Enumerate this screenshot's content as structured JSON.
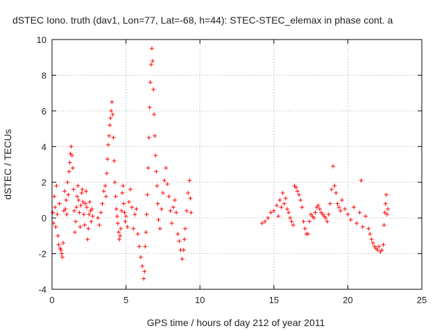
{
  "chart_data": {
    "type": "scatter",
    "title": "dSTEC Iono. truth (dav1, Lon=77, Lat=-68, h=44): STEC-STEC_elemax in phase cont. a",
    "xlabel": "GPS time / hours of day 212 of year 2011",
    "ylabel": "dSTEC  / TECUs",
    "xlim": [
      0,
      25
    ],
    "ylim": [
      -4,
      10
    ],
    "xticks": [
      "0",
      "5",
      "10",
      "15",
      "20",
      "25"
    ],
    "yticks": [
      "-4",
      "-2",
      "0",
      "2",
      "4",
      "6",
      "8",
      "10"
    ],
    "grid": true,
    "marker": "+",
    "color": "#ff0000",
    "series": [
      {
        "points": [
          [
            0.05,
            0.3
          ],
          [
            0.1,
            -0.3
          ],
          [
            0.15,
            1.2
          ],
          [
            0.2,
            0.6
          ],
          [
            0.25,
            -0.5
          ],
          [
            0.3,
            1.8
          ],
          [
            0.35,
            0.2
          ],
          [
            0.4,
            -1.0
          ],
          [
            0.45,
            -1.5
          ],
          [
            0.5,
            0.8
          ],
          [
            0.55,
            -1.7
          ],
          [
            0.6,
            -1.8
          ],
          [
            0.65,
            -2.0
          ],
          [
            0.7,
            -2.2
          ],
          [
            0.75,
            -1.4
          ],
          [
            0.8,
            0.4
          ],
          [
            0.85,
            1.5
          ],
          [
            0.9,
            0.5
          ],
          [
            0.95,
            1.0
          ],
          [
            1.0,
            0.2
          ],
          [
            1.05,
            2.0
          ],
          [
            1.1,
            1.3
          ],
          [
            1.15,
            2.6
          ],
          [
            1.2,
            3.1
          ],
          [
            1.25,
            3.6
          ],
          [
            1.3,
            4.0
          ],
          [
            1.35,
            3.5
          ],
          [
            1.4,
            2.8
          ],
          [
            1.45,
            1.6
          ],
          [
            1.5,
            0.4
          ],
          [
            1.55,
            -0.8
          ],
          [
            1.6,
            -0.2
          ],
          [
            1.65,
            0.6
          ],
          [
            1.7,
            1.2
          ],
          [
            1.75,
            1.8
          ],
          [
            1.8,
            1.0
          ],
          [
            1.85,
            0.3
          ],
          [
            1.9,
            -0.5
          ],
          [
            1.95,
            0.7
          ],
          [
            2.0,
            1.4
          ],
          [
            2.05,
            1.6
          ],
          [
            2.1,
            0.9
          ],
          [
            2.15,
            0.2
          ],
          [
            2.2,
            -0.4
          ],
          [
            2.25,
            0.8
          ],
          [
            2.3,
            1.5
          ],
          [
            2.35,
            0.6
          ],
          [
            2.4,
            -1.2
          ],
          [
            2.45,
            -0.6
          ],
          [
            2.5,
            0.2
          ],
          [
            2.55,
            0.9
          ],
          [
            2.6,
            0.4
          ],
          [
            2.65,
            -0.2
          ],
          [
            2.7,
            0.5
          ],
          [
            2.75,
            0.1
          ],
          [
            3.1,
            0.0
          ],
          [
            3.2,
            -0.4
          ],
          [
            3.3,
            0.3
          ],
          [
            3.4,
            0.8
          ],
          [
            3.5,
            1.5
          ],
          [
            3.6,
            1.8
          ],
          [
            3.65,
            1.2
          ],
          [
            3.7,
            2.5
          ],
          [
            3.75,
            3.3
          ],
          [
            3.8,
            4.1
          ],
          [
            3.85,
            4.6
          ],
          [
            3.9,
            5.2
          ],
          [
            3.95,
            5.6
          ],
          [
            4.0,
            6.0
          ],
          [
            4.05,
            6.5
          ],
          [
            4.1,
            5.8
          ],
          [
            4.15,
            4.5
          ],
          [
            4.2,
            3.2
          ],
          [
            4.25,
            2.0
          ],
          [
            4.3,
            1.2
          ],
          [
            4.35,
            0.5
          ],
          [
            4.4,
            0.1
          ],
          [
            4.45,
            -0.3
          ],
          [
            4.5,
            -0.8
          ],
          [
            4.55,
            -1.2
          ],
          [
            4.6,
            -1.0
          ],
          [
            4.65,
            -0.6
          ],
          [
            4.7,
            0.4
          ],
          [
            4.75,
            1.4
          ],
          [
            4.8,
            1.8
          ],
          [
            4.85,
            0.8
          ],
          [
            4.9,
            0.3
          ],
          [
            4.95,
            -0.2
          ],
          [
            5.0,
            0.1
          ],
          [
            5.1,
            -0.5
          ],
          [
            5.2,
            0.9
          ],
          [
            5.3,
            1.6
          ],
          [
            5.4,
            0.6
          ],
          [
            5.5,
            -0.6
          ],
          [
            5.6,
            0.2
          ],
          [
            5.7,
            0.5
          ],
          [
            5.8,
            -0.9
          ],
          [
            5.9,
            -1.6
          ],
          [
            6.0,
            -2.2
          ],
          [
            6.1,
            -2.7
          ],
          [
            6.2,
            -3.4
          ],
          [
            6.25,
            -3.0
          ],
          [
            6.3,
            -1.6
          ],
          [
            6.35,
            -0.8
          ],
          [
            6.4,
            0.2
          ],
          [
            6.45,
            1.3
          ],
          [
            6.5,
            2.8
          ],
          [
            6.55,
            4.5
          ],
          [
            6.6,
            6.2
          ],
          [
            6.65,
            7.6
          ],
          [
            6.7,
            8.6
          ],
          [
            6.75,
            9.5
          ],
          [
            6.8,
            8.8
          ],
          [
            6.85,
            7.2
          ],
          [
            6.9,
            5.8
          ],
          [
            6.95,
            4.6
          ],
          [
            7.0,
            3.5
          ],
          [
            7.05,
            2.6
          ],
          [
            7.1,
            1.8
          ],
          [
            7.15,
            0.8
          ],
          [
            7.2,
            -0.1
          ],
          [
            7.3,
            -0.6
          ],
          [
            7.4,
            0.5
          ],
          [
            7.5,
            1.4
          ],
          [
            7.6,
            2.1
          ],
          [
            7.7,
            2.8
          ],
          [
            7.8,
            1.9
          ],
          [
            7.9,
            1.2
          ],
          [
            8.0,
            0.4
          ],
          [
            8.1,
            -0.3
          ],
          [
            8.2,
            0.6
          ],
          [
            8.3,
            1.0
          ],
          [
            8.4,
            0.3
          ],
          [
            8.5,
            -0.9
          ],
          [
            8.6,
            -1.3
          ],
          [
            8.7,
            -1.8
          ],
          [
            8.8,
            -2.3
          ],
          [
            8.9,
            -1.8
          ],
          [
            8.95,
            -1.2
          ],
          [
            9.0,
            -0.6
          ],
          [
            9.1,
            0.4
          ],
          [
            9.2,
            1.4
          ],
          [
            9.3,
            2.1
          ],
          [
            9.35,
            1.1
          ],
          [
            9.4,
            0.3
          ],
          [
            14.2,
            -0.3
          ],
          [
            14.4,
            -0.2
          ],
          [
            14.6,
            0.0
          ],
          [
            14.8,
            0.3
          ],
          [
            15.0,
            0.4
          ],
          [
            15.2,
            0.7
          ],
          [
            15.3,
            0.1
          ],
          [
            15.4,
            1.0
          ],
          [
            15.5,
            0.6
          ],
          [
            15.6,
            1.4
          ],
          [
            15.7,
            0.8
          ],
          [
            15.8,
            1.1
          ],
          [
            15.9,
            0.5
          ],
          [
            16.0,
            0.3
          ],
          [
            16.1,
            0.0
          ],
          [
            16.2,
            -0.2
          ],
          [
            16.3,
            -0.4
          ],
          [
            16.4,
            1.8
          ],
          [
            16.5,
            1.7
          ],
          [
            16.6,
            1.5
          ],
          [
            16.7,
            1.3
          ],
          [
            16.8,
            1.0
          ],
          [
            16.9,
            0.6
          ],
          [
            17.0,
            -0.2
          ],
          [
            17.1,
            -0.6
          ],
          [
            17.2,
            -0.9
          ],
          [
            17.3,
            -0.9
          ],
          [
            17.4,
            -0.2
          ],
          [
            17.5,
            0.2
          ],
          [
            17.6,
            0.1
          ],
          [
            17.7,
            0.0
          ],
          [
            17.8,
            0.3
          ],
          [
            17.9,
            0.6
          ],
          [
            18.0,
            0.7
          ],
          [
            18.1,
            0.5
          ],
          [
            18.2,
            0.3
          ],
          [
            18.3,
            0.2
          ],
          [
            18.4,
            0.1
          ],
          [
            18.5,
            0.0
          ],
          [
            18.6,
            -0.2
          ],
          [
            18.7,
            0.2
          ],
          [
            18.8,
            0.8
          ],
          [
            18.9,
            1.6
          ],
          [
            19.0,
            2.9
          ],
          [
            19.1,
            1.8
          ],
          [
            19.2,
            1.4
          ],
          [
            19.3,
            0.8
          ],
          [
            19.4,
            0.6
          ],
          [
            19.5,
            0.4
          ],
          [
            19.6,
            1.0
          ],
          [
            19.8,
            0.5
          ],
          [
            20.0,
            0.2
          ],
          [
            20.2,
            -0.1
          ],
          [
            20.4,
            0.6
          ],
          [
            20.6,
            -0.3
          ],
          [
            20.8,
            0.3
          ],
          [
            20.9,
            2.1
          ],
          [
            21.0,
            -0.5
          ],
          [
            21.2,
            0.1
          ],
          [
            21.4,
            -0.6
          ],
          [
            21.5,
            -0.9
          ],
          [
            21.6,
            -1.2
          ],
          [
            21.7,
            -1.4
          ],
          [
            21.8,
            -1.6
          ],
          [
            21.9,
            -1.7
          ],
          [
            22.0,
            -1.8
          ],
          [
            22.1,
            -1.6
          ],
          [
            22.2,
            -1.9
          ],
          [
            22.3,
            -1.8
          ],
          [
            22.4,
            -1.5
          ],
          [
            22.45,
            -0.4
          ],
          [
            22.5,
            0.3
          ],
          [
            22.55,
            0.8
          ],
          [
            22.6,
            1.3
          ],
          [
            22.65,
            0.2
          ],
          [
            22.7,
            0.5
          ]
        ]
      }
    ]
  }
}
